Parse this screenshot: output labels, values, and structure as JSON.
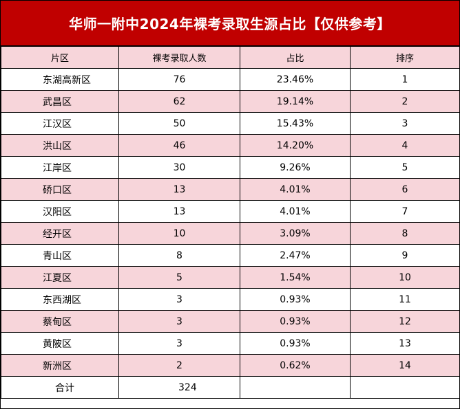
{
  "title": "华师一附中2024年裸考录取生源占比【仅供参考】",
  "headers": [
    "片区",
    "裸考录取人数",
    "占比",
    "排序"
  ],
  "rows": [
    {
      "district": "东湖高新区",
      "count": "76",
      "share": "23.46%",
      "rank": "1"
    },
    {
      "district": "武昌区",
      "count": "62",
      "share": "19.14%",
      "rank": "2"
    },
    {
      "district": "江汉区",
      "count": "50",
      "share": "15.43%",
      "rank": "3"
    },
    {
      "district": "洪山区",
      "count": "46",
      "share": "14.20%",
      "rank": "4"
    },
    {
      "district": "江岸区",
      "count": "30",
      "share": "9.26%",
      "rank": "5"
    },
    {
      "district": "硚口区",
      "count": "13",
      "share": "4.01%",
      "rank": "6"
    },
    {
      "district": "汉阳区",
      "count": "13",
      "share": "4.01%",
      "rank": "7"
    },
    {
      "district": "经开区",
      "count": "10",
      "share": "3.09%",
      "rank": "8"
    },
    {
      "district": "青山区",
      "count": "8",
      "share": "2.47%",
      "rank": "9"
    },
    {
      "district": "江夏区",
      "count": "5",
      "share": "1.54%",
      "rank": "10"
    },
    {
      "district": "东西湖区",
      "count": "3",
      "share": "0.93%",
      "rank": "11"
    },
    {
      "district": "蔡甸区",
      "count": "3",
      "share": "0.93%",
      "rank": "12"
    },
    {
      "district": "黄陂区",
      "count": "3",
      "share": "0.93%",
      "rank": "13"
    },
    {
      "district": "新洲区",
      "count": "2",
      "share": "0.62%",
      "rank": "14"
    }
  ],
  "total": {
    "label": "合计",
    "count": "324",
    "share": "",
    "rank": ""
  },
  "colors": {
    "title_background": "#c00000",
    "title_text": "#ffffff",
    "stripe_pink": "#f7d5da",
    "stripe_white": "#ffffff",
    "border": "#000000"
  }
}
